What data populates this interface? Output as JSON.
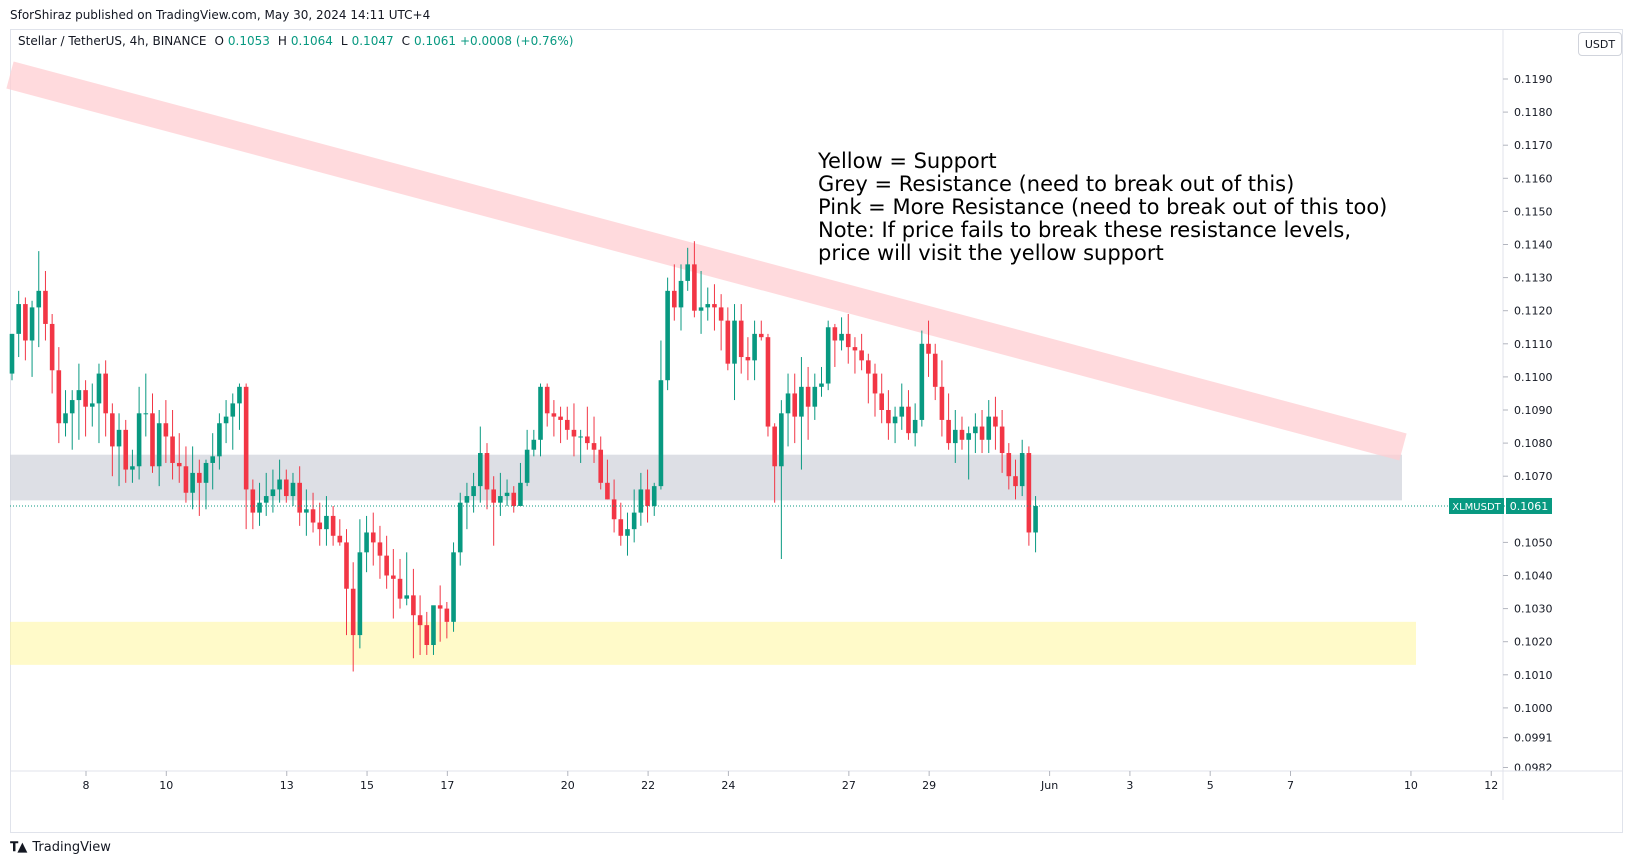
{
  "publisher_line": "SforShiraz published on TradingView.com, May 30, 2024 14:11 UTC+4",
  "legend": {
    "symbol": "Stellar / TetherUS, 4h, BINANCE",
    "o_label": "O",
    "o_value": "0.1053",
    "h_label": "H",
    "h_value": "0.1064",
    "l_label": "L",
    "l_value": "0.1047",
    "c_label": "C",
    "c_value": "0.1061",
    "change": "+0.0008 (+0.76%)"
  },
  "currency_button": "USDT",
  "brand": {
    "icon": "tradingview-logo-icon",
    "text": "TradingView"
  },
  "colors": {
    "up": "#089981",
    "down": "#f23645",
    "support_zone": "#fff59d",
    "resistance_zone": "#d1d4dc",
    "trend_channel": "#ffcdd2"
  },
  "chart_data": {
    "type": "candlestick",
    "symbol": "XLMUSDT",
    "last_price": "0.1061",
    "price_tag_label": "XLMUSDT",
    "y_ticks": [
      "0.1190",
      "0.1180",
      "0.1170",
      "0.1160",
      "0.1150",
      "0.1140",
      "0.1130",
      "0.1120",
      "0.1110",
      "0.1100",
      "0.1090",
      "0.1080",
      "0.1070",
      "0.1050",
      "0.1040",
      "0.1030",
      "0.1020",
      "0.1010",
      "0.1000",
      "0.0991",
      "0.0982"
    ],
    "x_ticks": [
      "8",
      "10",
      "13",
      "15",
      "17",
      "20",
      "22",
      "24",
      "27",
      "29",
      "Jun",
      "3",
      "5",
      "7",
      "10",
      "12"
    ],
    "annotation": [
      "Yellow = Support",
      "Grey = Resistance (need to break out of this)",
      "Pink = More Resistance (need to break out of this too)",
      "Note: If price fails to break these resistance levels,",
      "price will visit the yellow support"
    ],
    "zones": [
      {
        "name": "support",
        "color": "yellow",
        "low": 0.1013,
        "high": 0.1026
      },
      {
        "name": "resistance",
        "color": "grey",
        "low": 0.10627,
        "high": 0.10765
      }
    ],
    "trend_channel": {
      "color": "pink",
      "start": {
        "date": "May 5",
        "price": 0.1192
      },
      "end": {
        "date": "Jun 10",
        "price": 0.1071
      }
    },
    "candles": [
      [
        0.1101,
        0.1113,
        0.1099,
        0.1113
      ],
      [
        0.1113,
        0.1126,
        0.1106,
        0.1122
      ],
      [
        0.1122,
        0.1124,
        0.1105,
        0.1111
      ],
      [
        0.1111,
        0.1123,
        0.11,
        0.1121
      ],
      [
        0.1121,
        0.1138,
        0.1109,
        0.1126
      ],
      [
        0.1126,
        0.1132,
        0.1111,
        0.1116
      ],
      [
        0.1116,
        0.1119,
        0.1095,
        0.1102
      ],
      [
        0.1102,
        0.1109,
        0.108,
        0.1086
      ],
      [
        0.1086,
        0.1096,
        0.1082,
        0.1089
      ],
      [
        0.1089,
        0.1096,
        0.1078,
        0.1093
      ],
      [
        0.1093,
        0.1104,
        0.1081,
        0.1096
      ],
      [
        0.1096,
        0.1099,
        0.1082,
        0.1091
      ],
      [
        0.1091,
        0.1098,
        0.1085,
        0.1092
      ],
      [
        0.1092,
        0.1104,
        0.108,
        0.1101
      ],
      [
        0.1101,
        0.1105,
        0.1082,
        0.1089
      ],
      [
        0.1089,
        0.1092,
        0.107,
        0.1079
      ],
      [
        0.1079,
        0.1089,
        0.1067,
        0.1084
      ],
      [
        0.1084,
        0.1087,
        0.1068,
        0.1072
      ],
      [
        0.1072,
        0.1078,
        0.1068,
        0.1073
      ],
      [
        0.1073,
        0.1097,
        0.1069,
        0.1089
      ],
      [
        0.1089,
        0.1101,
        0.1082,
        0.1089
      ],
      [
        0.1089,
        0.1095,
        0.1071,
        0.1073
      ],
      [
        0.1073,
        0.109,
        0.1067,
        0.1086
      ],
      [
        0.1086,
        0.1093,
        0.1074,
        0.1082
      ],
      [
        0.1082,
        0.109,
        0.1069,
        0.1074
      ],
      [
        0.1074,
        0.1083,
        0.1068,
        0.1073
      ],
      [
        0.1073,
        0.1079,
        0.1062,
        0.1065
      ],
      [
        0.1065,
        0.1079,
        0.106,
        0.1071
      ],
      [
        0.1071,
        0.1075,
        0.1058,
        0.1068
      ],
      [
        0.1068,
        0.1075,
        0.106,
        0.1074
      ],
      [
        0.1074,
        0.1083,
        0.1066,
        0.1076
      ],
      [
        0.1076,
        0.1089,
        0.1072,
        0.1086
      ],
      [
        0.1086,
        0.1093,
        0.108,
        0.1088
      ],
      [
        0.1088,
        0.1095,
        0.1078,
        0.1092
      ],
      [
        0.1092,
        0.1098,
        0.1084,
        0.1097
      ],
      [
        0.1097,
        0.1098,
        0.1054,
        0.1066
      ],
      [
        0.1066,
        0.1069,
        0.1054,
        0.1059
      ],
      [
        0.1059,
        0.1068,
        0.1055,
        0.1062
      ],
      [
        0.1062,
        0.1071,
        0.1058,
        0.1064
      ],
      [
        0.1064,
        0.1072,
        0.1059,
        0.1066
      ],
      [
        0.1066,
        0.1075,
        0.1062,
        0.1069
      ],
      [
        0.1069,
        0.1072,
        0.1062,
        0.1064
      ],
      [
        0.1064,
        0.1071,
        0.1061,
        0.1068
      ],
      [
        0.1068,
        0.1073,
        0.1055,
        0.1059
      ],
      [
        0.1059,
        0.1066,
        0.1052,
        0.106
      ],
      [
        0.106,
        0.1065,
        0.1053,
        0.1056
      ],
      [
        0.1056,
        0.1062,
        0.1049,
        0.1054
      ],
      [
        0.1054,
        0.1064,
        0.1049,
        0.1058
      ],
      [
        0.1058,
        0.1061,
        0.1049,
        0.1052
      ],
      [
        0.1052,
        0.1057,
        0.1049,
        0.105
      ],
      [
        0.105,
        0.1054,
        0.1022,
        0.1036
      ],
      [
        0.1036,
        0.1044,
        0.1011,
        0.1022
      ],
      [
        0.1022,
        0.1057,
        0.1018,
        0.1047
      ],
      [
        0.1047,
        0.1058,
        0.1041,
        0.1053
      ],
      [
        0.1053,
        0.1059,
        0.1043,
        0.105
      ],
      [
        0.105,
        0.1055,
        0.1039,
        0.1046
      ],
      [
        0.1046,
        0.1052,
        0.1036,
        0.104
      ],
      [
        0.104,
        0.1048,
        0.1027,
        0.1039
      ],
      [
        0.1039,
        0.1045,
        0.103,
        0.1033
      ],
      [
        0.1033,
        0.1047,
        0.1031,
        0.1034
      ],
      [
        0.1034,
        0.1042,
        0.1015,
        0.1028
      ],
      [
        0.1028,
        0.1034,
        0.1016,
        0.1025
      ],
      [
        0.1025,
        0.1029,
        0.1016,
        0.1019
      ],
      [
        0.1019,
        0.103,
        0.1016,
        0.1031
      ],
      [
        0.1031,
        0.1037,
        0.102,
        0.103
      ],
      [
        0.103,
        0.1032,
        0.1021,
        0.1026
      ],
      [
        0.1026,
        0.105,
        0.1023,
        0.1047
      ],
      [
        0.1047,
        0.1065,
        0.1043,
        0.1062
      ],
      [
        0.1062,
        0.1068,
        0.1054,
        0.1064
      ],
      [
        0.1064,
        0.1071,
        0.1059,
        0.1067
      ],
      [
        0.1067,
        0.1085,
        0.1062,
        0.1077
      ],
      [
        0.1077,
        0.108,
        0.106,
        0.1066
      ],
      [
        0.1066,
        0.107,
        0.1049,
        0.1062
      ],
      [
        0.1062,
        0.1071,
        0.1058,
        0.1064
      ],
      [
        0.1064,
        0.1069,
        0.1061,
        0.1065
      ],
      [
        0.1065,
        0.1067,
        0.1059,
        0.1061
      ],
      [
        0.1061,
        0.1074,
        0.1061,
        0.1068
      ],
      [
        0.1068,
        0.1084,
        0.1067,
        0.1078
      ],
      [
        0.1078,
        0.1084,
        0.1076,
        0.1081
      ],
      [
        0.1081,
        0.1098,
        0.1076,
        0.1097
      ],
      [
        0.1097,
        0.1098,
        0.1085,
        0.1089
      ],
      [
        0.1089,
        0.1093,
        0.1082,
        0.1088
      ],
      [
        0.1088,
        0.1091,
        0.108,
        0.1087
      ],
      [
        0.1087,
        0.1091,
        0.1081,
        0.1084
      ],
      [
        0.1084,
        0.1092,
        0.1076,
        0.1082
      ],
      [
        0.1082,
        0.1084,
        0.1074,
        0.1082
      ],
      [
        0.1082,
        0.1091,
        0.1078,
        0.108
      ],
      [
        0.108,
        0.1088,
        0.1074,
        0.1078
      ],
      [
        0.1078,
        0.1082,
        0.1066,
        0.1068
      ],
      [
        0.1068,
        0.1075,
        0.1063,
        0.1063
      ],
      [
        0.1063,
        0.1069,
        0.1053,
        0.1057
      ],
      [
        0.1057,
        0.1062,
        0.1049,
        0.1052
      ],
      [
        0.1052,
        0.1059,
        0.1046,
        0.1054
      ],
      [
        0.1054,
        0.1066,
        0.105,
        0.1059
      ],
      [
        0.1059,
        0.1071,
        0.1055,
        0.1066
      ],
      [
        0.1066,
        0.1072,
        0.1056,
        0.1061
      ],
      [
        0.1061,
        0.1068,
        0.1058,
        0.1067
      ],
      [
        0.1067,
        0.1111,
        0.1066,
        0.1099
      ],
      [
        0.1099,
        0.113,
        0.1096,
        0.1126
      ],
      [
        0.1126,
        0.1134,
        0.1117,
        0.1121
      ],
      [
        0.1121,
        0.1134,
        0.1114,
        0.1129
      ],
      [
        0.1129,
        0.1139,
        0.1126,
        0.1134
      ],
      [
        0.1134,
        0.1141,
        0.1118,
        0.112
      ],
      [
        0.112,
        0.1132,
        0.1113,
        0.1121
      ],
      [
        0.1121,
        0.1127,
        0.1117,
        0.1122
      ],
      [
        0.1122,
        0.1128,
        0.1114,
        0.1121
      ],
      [
        0.1121,
        0.1125,
        0.1108,
        0.1117
      ],
      [
        0.1117,
        0.1121,
        0.1102,
        0.1104
      ],
      [
        0.1104,
        0.1122,
        0.1093,
        0.1117
      ],
      [
        0.1117,
        0.1122,
        0.1101,
        0.1106
      ],
      [
        0.1106,
        0.1112,
        0.1099,
        0.1105
      ],
      [
        0.1105,
        0.1117,
        0.1099,
        0.1113
      ],
      [
        0.1113,
        0.1117,
        0.1111,
        0.1112
      ],
      [
        0.1112,
        0.1113,
        0.1082,
        0.1085
      ],
      [
        0.1085,
        0.1086,
        0.1062,
        0.1073
      ],
      [
        0.1073,
        0.1093,
        0.1045,
        0.1089
      ],
      [
        0.1089,
        0.1101,
        0.1079,
        0.1095
      ],
      [
        0.1095,
        0.1101,
        0.108,
        0.1088
      ],
      [
        0.1088,
        0.1106,
        0.1072,
        0.1097
      ],
      [
        0.1097,
        0.1103,
        0.1081,
        0.1091
      ],
      [
        0.1091,
        0.1101,
        0.1087,
        0.1097
      ],
      [
        0.1097,
        0.1103,
        0.1094,
        0.1098
      ],
      [
        0.1098,
        0.1117,
        0.1096,
        0.1115
      ],
      [
        0.1115,
        0.1116,
        0.1103,
        0.1111
      ],
      [
        0.1111,
        0.1118,
        0.1108,
        0.1113
      ],
      [
        0.1113,
        0.1119,
        0.1104,
        0.1109
      ],
      [
        0.1109,
        0.1112,
        0.1101,
        0.1108
      ],
      [
        0.1108,
        0.1113,
        0.1102,
        0.1105
      ],
      [
        0.1105,
        0.1107,
        0.1092,
        0.1101
      ],
      [
        0.1101,
        0.1104,
        0.1088,
        0.1095
      ],
      [
        0.1095,
        0.1101,
        0.1086,
        0.109
      ],
      [
        0.109,
        0.1096,
        0.1081,
        0.1086
      ],
      [
        0.1086,
        0.1091,
        0.108,
        0.1088
      ],
      [
        0.1088,
        0.1098,
        0.1084,
        0.1091
      ],
      [
        0.1091,
        0.1096,
        0.1081,
        0.1083
      ],
      [
        0.1083,
        0.1092,
        0.1079,
        0.1087
      ],
      [
        0.1087,
        0.1114,
        0.1085,
        0.111
      ],
      [
        0.111,
        0.1117,
        0.11,
        0.1107
      ],
      [
        0.1107,
        0.111,
        0.1093,
        0.1097
      ],
      [
        0.1097,
        0.1105,
        0.1082,
        0.1087
      ],
      [
        0.1087,
        0.1095,
        0.1078,
        0.108
      ],
      [
        0.108,
        0.109,
        0.1074,
        0.1084
      ],
      [
        0.1084,
        0.1088,
        0.1078,
        0.1081
      ],
      [
        0.1081,
        0.1085,
        0.1069,
        0.1083
      ],
      [
        0.1083,
        0.1089,
        0.1077,
        0.1085
      ],
      [
        0.1085,
        0.109,
        0.1077,
        0.1081
      ],
      [
        0.1081,
        0.1093,
        0.1077,
        0.1088
      ],
      [
        0.1088,
        0.1094,
        0.1078,
        0.1085
      ],
      [
        0.1085,
        0.109,
        0.1071,
        0.1077
      ],
      [
        0.1077,
        0.108,
        0.1066,
        0.107
      ],
      [
        0.107,
        0.1075,
        0.1063,
        0.1067
      ],
      [
        0.1067,
        0.1081,
        0.1064,
        0.1077
      ],
      [
        0.1077,
        0.1079,
        0.1049,
        0.1053
      ],
      [
        0.1053,
        0.1064,
        0.1047,
        0.1061
      ]
    ]
  }
}
